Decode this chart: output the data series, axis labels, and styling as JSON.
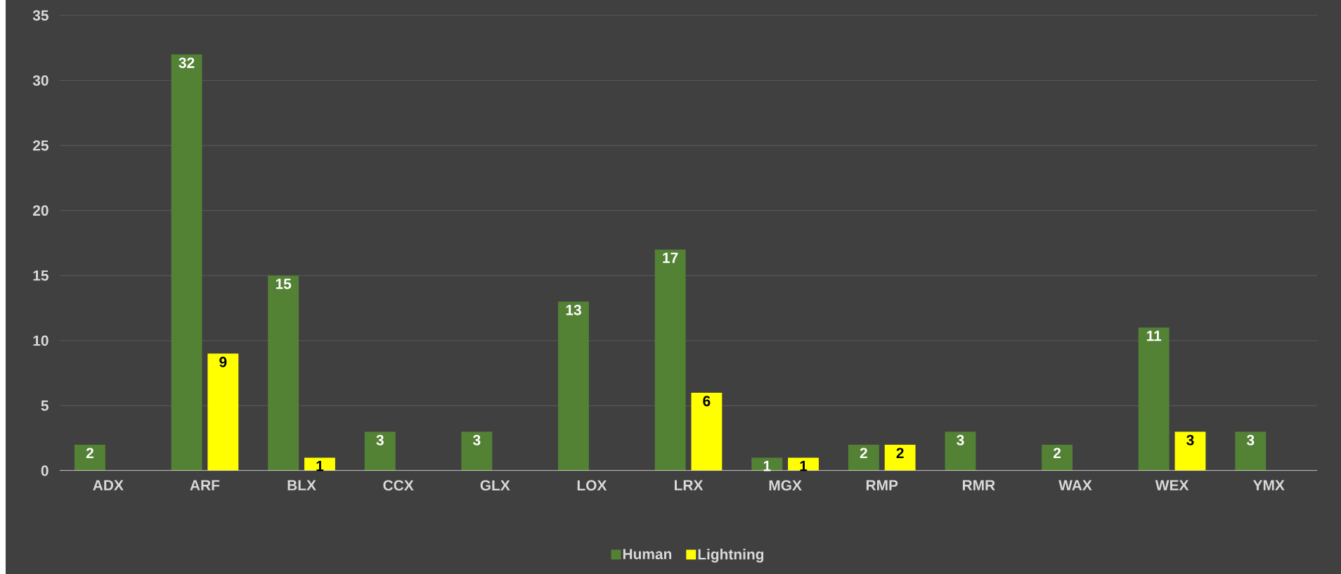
{
  "chart_data": {
    "type": "bar",
    "categories": [
      "ADX",
      "ARF",
      "BLX",
      "CCX",
      "GLX",
      "LOX",
      "LRX",
      "MGX",
      "RMP",
      "RMR",
      "WAX",
      "WEX",
      "YMX"
    ],
    "series": [
      {
        "name": "Human",
        "color": "#548235",
        "values": [
          2,
          32,
          15,
          3,
          3,
          13,
          17,
          1,
          2,
          3,
          2,
          11,
          3
        ]
      },
      {
        "name": "Lightning",
        "color": "#ffff00",
        "values": [
          null,
          9,
          1,
          null,
          null,
          null,
          6,
          1,
          2,
          null,
          null,
          3,
          null
        ]
      }
    ],
    "ylim": [
      0,
      35
    ],
    "yticks": [
      0,
      5,
      10,
      15,
      20,
      25,
      30,
      35
    ],
    "grid": "y",
    "legend": "bottom",
    "data_labels": true
  }
}
